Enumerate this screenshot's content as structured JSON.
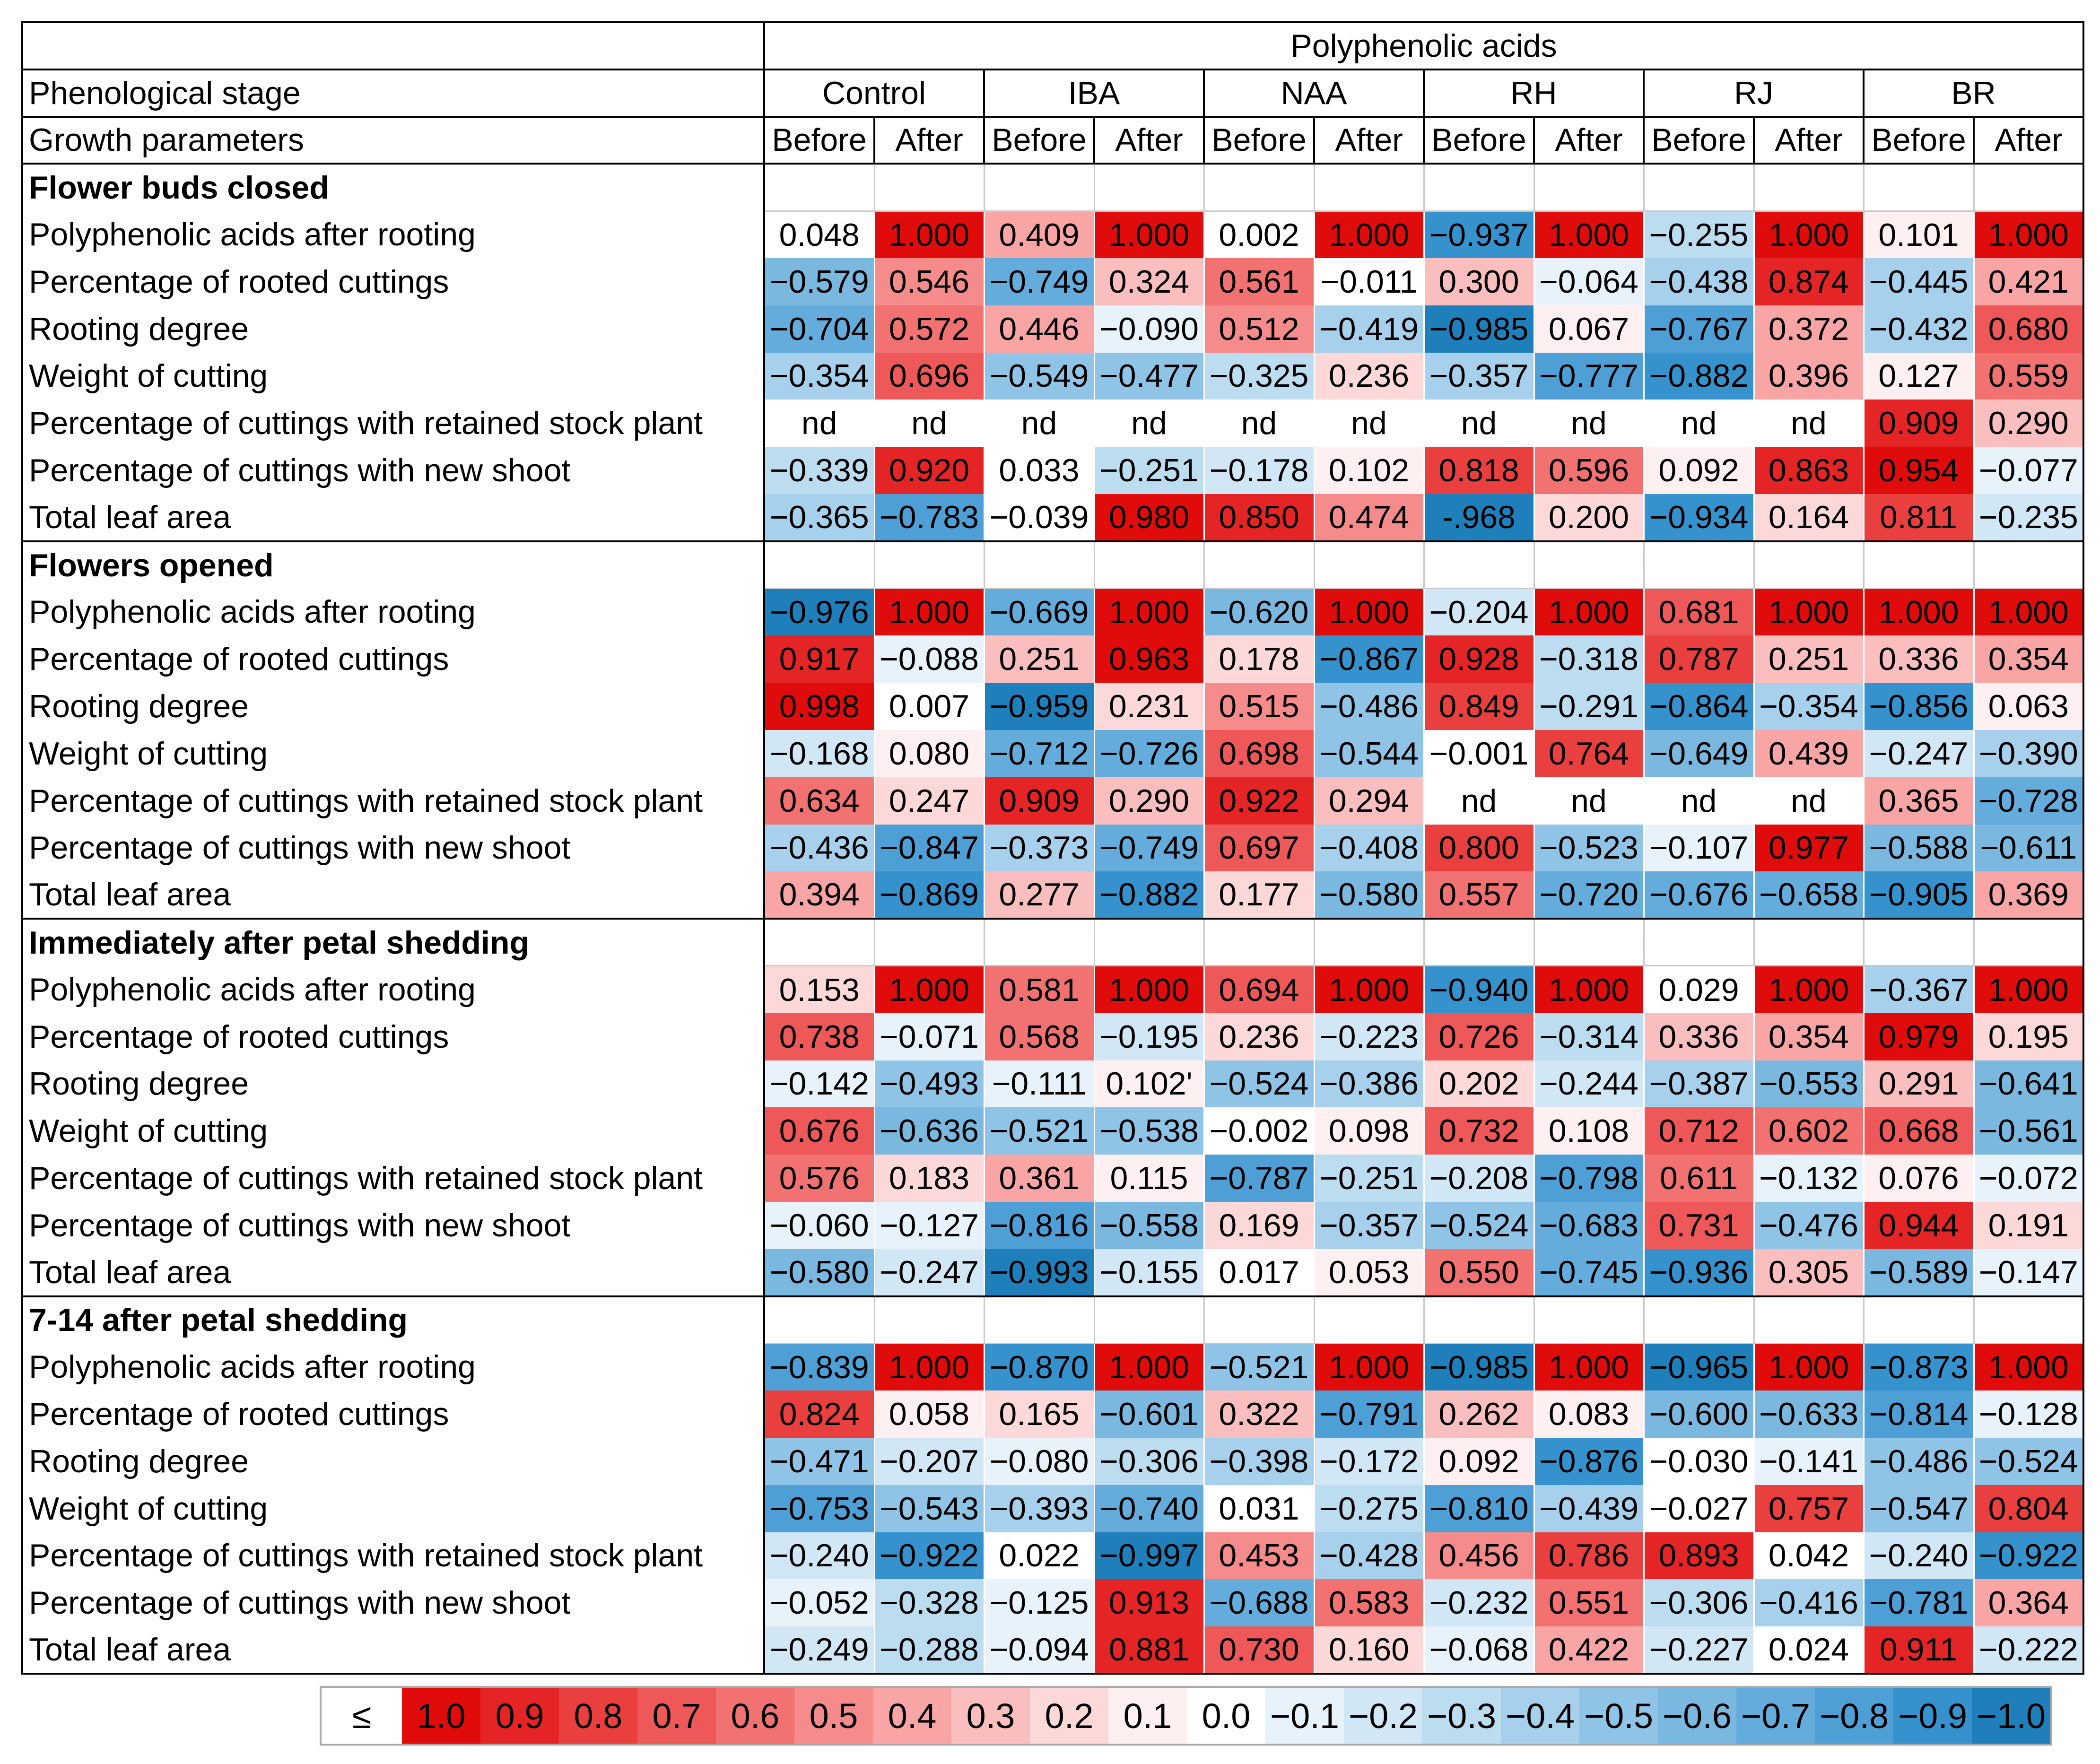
{
  "header": {
    "group_title": "Polyphenolic acids",
    "stage_label": "Phenological stage",
    "param_label": "Growth parameters",
    "treatments": [
      "Control",
      "IBA",
      "NAA",
      "RH",
      "RJ",
      "BR"
    ],
    "sub_labels": [
      "Before",
      "After"
    ]
  },
  "sections": [
    {
      "title": "Flower buds closed",
      "rows": [
        {
          "label": "Polyphenolic acids after rooting",
          "values": [
            "0.048",
            "1.000",
            "0.409",
            "1.000",
            "0.002",
            "1.000",
            "−0.937",
            "1.000",
            "−0.255",
            "1.000",
            "0.101",
            "1.000"
          ]
        },
        {
          "label": "Percentage of rooted cuttings",
          "values": [
            "−0.579",
            "0.546",
            "−0.749",
            "0.324",
            "0.561",
            "−0.011",
            "0.300",
            "−0.064",
            "−0.438",
            "0.874",
            "−0.445",
            "0.421"
          ]
        },
        {
          "label": "Rooting degree",
          "values": [
            "−0.704",
            "0.572",
            "0.446",
            "−0.090",
            "0.512",
            "−0.419",
            "−0.985",
            "0.067",
            "−0.767",
            "0.372",
            "−0.432",
            "0.680"
          ]
        },
        {
          "label": "Weight of cutting",
          "values": [
            "−0.354",
            "0.696",
            "−0.549",
            "−0.477",
            "−0.325",
            "0.236",
            "−0.357",
            "−0.777",
            "−0.882",
            "0.396",
            "0.127",
            "0.559"
          ]
        },
        {
          "label": "Percentage of cuttings with retained stock plant",
          "values": [
            "nd",
            "nd",
            "nd",
            "nd",
            "nd",
            "nd",
            "nd",
            "nd",
            "nd",
            "nd",
            "0.909",
            "0.290"
          ]
        },
        {
          "label": "Percentage of cuttings with new shoot",
          "values": [
            "−0.339",
            "0.920",
            "0.033",
            "−0.251",
            "−0.178",
            "0.102",
            "0.818",
            "0.596",
            "0.092",
            "0.863",
            "0.954",
            "−0.077"
          ]
        },
        {
          "label": "Total leaf area",
          "values": [
            "−0.365",
            "−0.783",
            "−0.039",
            "0.980",
            "0.850",
            "0.474",
            "-.968",
            "0.200",
            "−0.934",
            "0.164",
            "0.811",
            "−0.235"
          ]
        }
      ]
    },
    {
      "title": "Flowers opened",
      "rows": [
        {
          "label": "Polyphenolic acids after rooting",
          "values": [
            "−0.976",
            "1.000",
            "−0.669",
            "1.000",
            "−0.620",
            "1.000",
            "−0.204",
            "1.000",
            "0.681",
            "1.000",
            "1.000",
            "1.000"
          ]
        },
        {
          "label": "Percentage of rooted cuttings",
          "values": [
            "0.917",
            "−0.088",
            "0.251",
            "0.963",
            "0.178",
            "−0.867",
            "0.928",
            "−0.318",
            "0.787",
            "0.251",
            "0.336",
            "0.354"
          ]
        },
        {
          "label": "Rooting degree",
          "values": [
            "0.998",
            "0.007",
            "−0.959",
            "0.231",
            "0.515",
            "−0.486",
            "0.849",
            "−0.291",
            "−0.864",
            "−0.354",
            "−0.856",
            "0.063"
          ]
        },
        {
          "label": "Weight of cutting",
          "values": [
            "−0.168",
            "0.080",
            "−0.712",
            "−0.726",
            "0.698",
            "−0.544",
            "−0.001",
            "0.764",
            "−0.649",
            "0.439",
            "−0.247",
            "−0.390"
          ]
        },
        {
          "label": "Percentage of cuttings with retained stock plant",
          "values": [
            "0.634",
            "0.247",
            "0.909",
            "0.290",
            "0.922",
            "0.294",
            "nd",
            "nd",
            "nd",
            "nd",
            "0.365",
            "−0.728"
          ]
        },
        {
          "label": "Percentage of cuttings with new shoot",
          "values": [
            "−0.436",
            "−0.847",
            "−0.373",
            "−0.749",
            "0.697",
            "−0.408",
            "0.800",
            "−0.523",
            "−0.107",
            "0.977",
            "−0.588",
            "−0.611"
          ]
        },
        {
          "label": "Total leaf area",
          "values": [
            "0.394",
            "−0.869",
            "0.277",
            "−0.882",
            "0.177",
            "−0.580",
            "0.557",
            "−0.720",
            "−0.676",
            "−0.658",
            "−0.905",
            "0.369"
          ]
        }
      ]
    },
    {
      "title": "Immediately after petal shedding",
      "rows": [
        {
          "label": "Polyphenolic acids after rooting",
          "values": [
            "0.153",
            "1.000",
            "0.581",
            "1.000",
            "0.694",
            "1.000",
            "−0.940",
            "1.000",
            "0.029",
            "1.000",
            "−0.367",
            "1.000"
          ]
        },
        {
          "label": "Percentage of rooted cuttings",
          "values": [
            "0.738",
            "−0.071",
            "0.568",
            "−0.195",
            "0.236",
            "−0.223",
            "0.726",
            "−0.314",
            "0.336",
            "0.354",
            "0.979",
            "0.195"
          ]
        },
        {
          "label": "Rooting degree",
          "values": [
            "−0.142",
            "−0.493",
            "−0.111",
            "0.102'",
            "−0.524",
            "−0.386",
            "0.202",
            "−0.244",
            "−0.387",
            "−0.553",
            "0.291",
            "−0.641"
          ]
        },
        {
          "label": "Weight of cutting",
          "values": [
            "0.676",
            "−0.636",
            "−0.521",
            "−0.538",
            "−0.002",
            "0.098",
            "0.732",
            "0.108",
            "0.712",
            "0.602",
            "0.668",
            "−0.561"
          ]
        },
        {
          "label": "Percentage of cuttings with retained stock plant",
          "values": [
            "0.576",
            "0.183",
            "0.361",
            "0.115",
            "−0.787",
            "−0.251",
            "−0.208",
            "−0.798",
            "0.611",
            "−0.132",
            "0.076",
            "−0.072"
          ]
        },
        {
          "label": "Percentage of cuttings with new shoot",
          "values": [
            "−0.060",
            "−0.127",
            "−0.816",
            "−0.558",
            "0.169",
            "−0.357",
            "−0.524",
            "−0.683",
            "0.731",
            "−0.476",
            "0.944",
            "0.191"
          ]
        },
        {
          "label": "Total leaf area",
          "values": [
            "−0.580",
            "−0.247",
            "−0.993",
            "−0.155",
            "0.017",
            "0.053",
            "0.550",
            "−0.745",
            "−0.936",
            "0.305",
            "−0.589",
            "−0.147"
          ]
        }
      ]
    },
    {
      "title": "7-14 after petal shedding",
      "rows": [
        {
          "label": "Polyphenolic acids after rooting",
          "values": [
            "−0.839",
            "1.000",
            "−0.870",
            "1.000",
            "−0.521",
            "1.000",
            "−0.985",
            "1.000",
            "−0.965",
            "1.000",
            "−0.873",
            "1.000"
          ]
        },
        {
          "label": "Percentage of rooted cuttings",
          "values": [
            "0.824",
            "0.058",
            "0.165",
            "−0.601",
            "0.322",
            "−0.791",
            "0.262",
            "0.083",
            "−0.600",
            "−0.633",
            "−0.814",
            "−0.128"
          ]
        },
        {
          "label": "Rooting degree",
          "values": [
            "−0.471",
            "−0.207",
            "−0.080",
            "−0.306",
            "−0.398",
            "−0.172",
            "0.092",
            "−0.876",
            "−0.030",
            "−0.141",
            "−0.486",
            "−0.524"
          ]
        },
        {
          "label": "Weight of cutting",
          "values": [
            "−0.753",
            "−0.543",
            "−0.393",
            "−0.740",
            "0.031",
            "−0.275",
            "−0.810",
            "−0.439",
            "−0.027",
            "0.757",
            "−0.547",
            "0.804"
          ]
        },
        {
          "label": "Percentage of cuttings with retained stock plant",
          "values": [
            "−0.240",
            "−0.922",
            "0.022",
            "−0.997",
            "0.453",
            "−0.428",
            "0.456",
            "0.786",
            "0.893",
            "0.042",
            "−0.240",
            "−0.922"
          ]
        },
        {
          "label": "Percentage of cuttings with new shoot",
          "values": [
            "−0.052",
            "−0.328",
            "−0.125",
            "0.913",
            "−0.688",
            "0.583",
            "−0.232",
            "0.551",
            "−0.306",
            "−0.416",
            "−0.781",
            "0.364"
          ]
        },
        {
          "label": "Total leaf area",
          "values": [
            "−0.249",
            "−0.288",
            "−0.094",
            "0.881",
            "0.730",
            "0.160",
            "−0.068",
            "0.422",
            "−0.227",
            "0.024",
            "0.911",
            "−0.222"
          ]
        }
      ]
    }
  ],
  "legend": {
    "symbol": "≤",
    "steps": [
      "1.0",
      "0.9",
      "0.8",
      "0.7",
      "0.6",
      "0.5",
      "0.4",
      "0.3",
      "0.2",
      "0.1",
      "0.0",
      "−0.1",
      "−0.2",
      "−0.3",
      "−0.4",
      "−0.5",
      "−0.6",
      "−0.7",
      "−0.8",
      "−0.9",
      "−1.0"
    ],
    "pos_colors": [
      "#e00b0b",
      "#e52525",
      "#ea3f3f",
      "#ee5858",
      "#f27272",
      "#f68b8b",
      "#f9a5a5",
      "#fbbebe",
      "#fdd8d8",
      "#fef0f0"
    ],
    "neg_colors": [
      "#e7f2fa",
      "#d2e7f5",
      "#bcdcf0",
      "#a6d0eb",
      "#90c4e6",
      "#7ab8e0",
      "#64acdb",
      "#4d9fd5",
      "#3692cc",
      "#1f7fba"
    ],
    "zero_color": "#ffffff"
  }
}
